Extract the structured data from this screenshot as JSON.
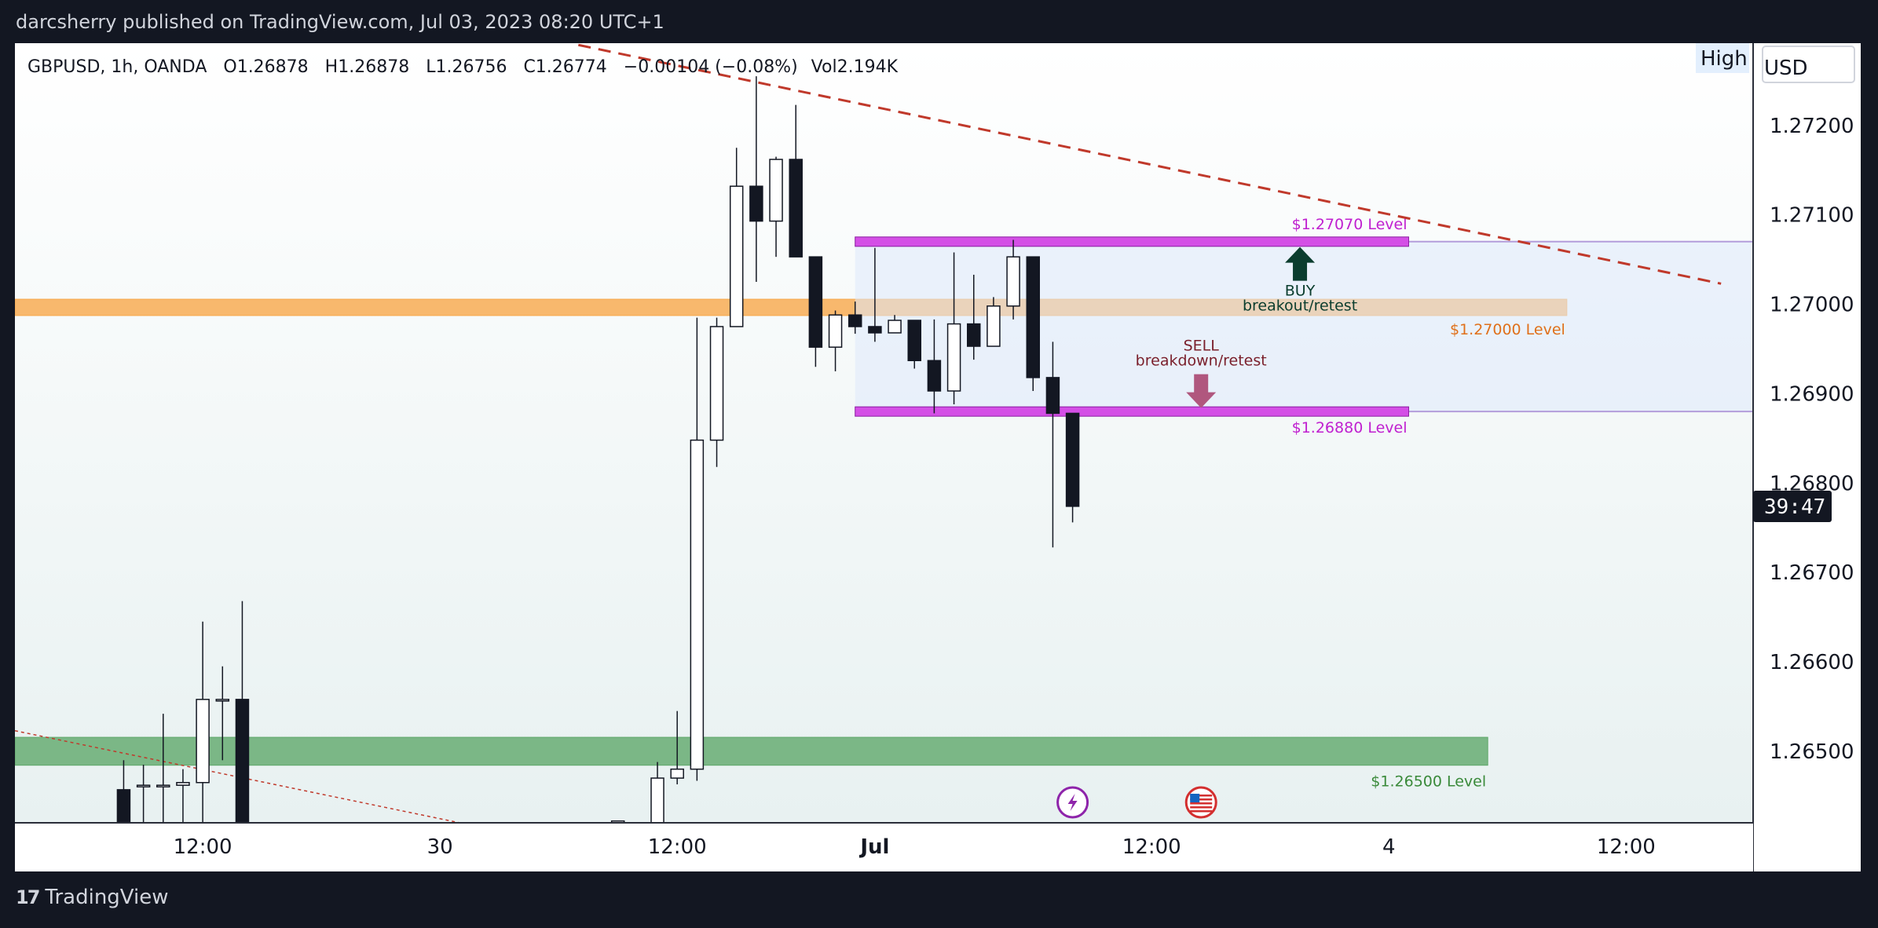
{
  "header": {
    "publish_line": "darcsherry published on TradingView.com, Jul 03, 2023 08:20 UTC+1"
  },
  "footer": {
    "brand": "TradingView",
    "logo_icon": "tradingview-logo-icon"
  },
  "colors": {
    "band_orange": "#f7a84a",
    "band_green": "#5fa86a",
    "magenta": "#d44fe6",
    "trend_red": "#c0392b",
    "buy_arrow": "#0b3d2e",
    "sell_arrow": "#b0577e",
    "label_orange": "#e0701a",
    "label_green": "#3a8a3a",
    "label_magenta": "#c020d0",
    "label_maroon": "#7a1f2b"
  },
  "chart_data": {
    "type": "candlestick",
    "symbol_line": {
      "symbol": "GBPUSD, 1h, OANDA",
      "open": "O1.26878",
      "high": "H1.26878",
      "low": "L1.26756",
      "close": "C1.26774",
      "change": "−0.00104 (−0.08%)",
      "volume": "Vol2.194K"
    },
    "currency": "USD",
    "toggle": "High",
    "countdown": "39:47",
    "y_range": [
      1.2642,
      1.2729
    ],
    "y_ticks": [
      "1.27200",
      "1.27100",
      "1.27000",
      "1.26900",
      "1.26800",
      "1.26700",
      "1.26600",
      "1.26500"
    ],
    "x_ticks": [
      {
        "label": "12:00",
        "bar": 9.5
      },
      {
        "label": "30",
        "bar": 21.5
      },
      {
        "label": "12:00",
        "bar": 33.5
      },
      {
        "label": "Jul",
        "bar": 43.5
      },
      {
        "label": "12:00",
        "bar": 57.5
      },
      {
        "label": "4",
        "bar": 69.5
      },
      {
        "label": "12:00",
        "bar": 81.5
      }
    ],
    "candles": [
      {
        "bar": 5.5,
        "o": 1.26457,
        "h": 1.2649,
        "l": 1.2642,
        "c": 1.2642
      },
      {
        "bar": 6.5,
        "o": 1.26462,
        "h": 1.26485,
        "l": 1.2642,
        "c": 1.26462
      },
      {
        "bar": 7.5,
        "o": 1.26462,
        "h": 1.26542,
        "l": 1.2642,
        "c": 1.26462
      },
      {
        "bar": 8.5,
        "o": 1.26462,
        "h": 1.2648,
        "l": 1.2642,
        "c": 1.26465
      },
      {
        "bar": 9.5,
        "o": 1.26465,
        "h": 1.26645,
        "l": 1.2642,
        "c": 1.26558
      },
      {
        "bar": 10.5,
        "o": 1.26558,
        "h": 1.26595,
        "l": 1.2649,
        "c": 1.26558
      },
      {
        "bar": 11.5,
        "o": 1.26558,
        "h": 1.26668,
        "l": 1.2642,
        "c": 1.2642
      },
      {
        "bar": 30.5,
        "o": 1.26422,
        "h": 1.26422,
        "l": 1.26418,
        "c": 1.26422
      },
      {
        "bar": 32.5,
        "o": 1.2642,
        "h": 1.26488,
        "l": 1.2642,
        "c": 1.2647
      },
      {
        "bar": 33.5,
        "o": 1.2647,
        "h": 1.26545,
        "l": 1.26463,
        "c": 1.2648
      },
      {
        "bar": 34.5,
        "o": 1.2648,
        "h": 1.26985,
        "l": 1.26467,
        "c": 1.26848
      },
      {
        "bar": 35.5,
        "o": 1.26848,
        "h": 1.26985,
        "l": 1.26818,
        "c": 1.26975
      },
      {
        "bar": 36.5,
        "o": 1.26975,
        "h": 1.27175,
        "l": 1.26975,
        "c": 1.27132
      },
      {
        "bar": 37.5,
        "o": 1.27132,
        "h": 1.27255,
        "l": 1.27025,
        "c": 1.27093
      },
      {
        "bar": 38.5,
        "o": 1.27093,
        "h": 1.27165,
        "l": 1.27053,
        "c": 1.27162
      },
      {
        "bar": 39.5,
        "o": 1.27162,
        "h": 1.27223,
        "l": 1.27053,
        "c": 1.27053
      },
      {
        "bar": 40.5,
        "o": 1.27053,
        "h": 1.27053,
        "l": 1.2693,
        "c": 1.26952
      },
      {
        "bar": 41.5,
        "o": 1.26952,
        "h": 1.26993,
        "l": 1.26925,
        "c": 1.26988
      },
      {
        "bar": 42.5,
        "o": 1.26988,
        "h": 1.27003,
        "l": 1.26967,
        "c": 1.26975
      },
      {
        "bar": 43.5,
        "o": 1.26975,
        "h": 1.27063,
        "l": 1.26958,
        "c": 1.26968
      },
      {
        "bar": 44.5,
        "o": 1.26968,
        "h": 1.26988,
        "l": 1.26968,
        "c": 1.26982
      },
      {
        "bar": 45.5,
        "o": 1.26982,
        "h": 1.26982,
        "l": 1.26928,
        "c": 1.26937
      },
      {
        "bar": 46.5,
        "o": 1.26937,
        "h": 1.26983,
        "l": 1.26878,
        "c": 1.26903
      },
      {
        "bar": 47.5,
        "o": 1.26903,
        "h": 1.27058,
        "l": 1.26888,
        "c": 1.26978
      },
      {
        "bar": 48.5,
        "o": 1.26978,
        "h": 1.27033,
        "l": 1.26938,
        "c": 1.26953
      },
      {
        "bar": 49.5,
        "o": 1.26953,
        "h": 1.27008,
        "l": 1.26953,
        "c": 1.26998
      },
      {
        "bar": 50.5,
        "o": 1.26998,
        "h": 1.27072,
        "l": 1.26983,
        "c": 1.27053
      },
      {
        "bar": 51.5,
        "o": 1.27053,
        "h": 1.27053,
        "l": 1.26903,
        "c": 1.26918
      },
      {
        "bar": 52.5,
        "o": 1.26918,
        "h": 1.26958,
        "l": 1.26728,
        "c": 1.26878
      },
      {
        "bar": 53.5,
        "o": 1.26878,
        "h": 1.26878,
        "l": 1.26756,
        "c": 1.26774
      }
    ],
    "zones": [
      {
        "kind": "band",
        "low": 1.2699,
        "high": 1.27003,
        "from_bar": 0,
        "to_bar": 78.5,
        "color_key": "band_orange",
        "label": "$1.27000 Level"
      },
      {
        "kind": "band",
        "low": 1.26487,
        "high": 1.26513,
        "from_bar": 0,
        "to_bar": 74.5,
        "color_key": "band_green",
        "label": "$1.26500 Level"
      },
      {
        "kind": "range",
        "low": 1.2688,
        "high": 1.2707,
        "from_bar": 42.5,
        "to_bar": 70.5
      },
      {
        "kind": "level",
        "price": 1.2707,
        "from_bar": 42.5,
        "to_bar": 70.5,
        "label": "$1.27070 Level"
      },
      {
        "kind": "level",
        "price": 1.2688,
        "from_bar": 42.5,
        "to_bar": 70.5,
        "label": "$1.26880 Level"
      }
    ],
    "trendlines": [
      {
        "from": {
          "bar": 28.5,
          "price": 1.2729
        },
        "to": {
          "bar": 86.3,
          "price": 1.27023
        },
        "style": "dashed"
      },
      {
        "from": {
          "bar": 0,
          "price": 1.26523
        },
        "to": {
          "bar": 22.5,
          "price": 1.2642
        },
        "style": "dotted"
      }
    ],
    "annotations": [
      {
        "text": "BUY",
        "sub": "breakout/retest",
        "direction": "up",
        "bar": 65.0,
        "price": 1.27064
      },
      {
        "text": "SELL",
        "sub": "breakdown/retest",
        "direction": "down",
        "bar": 60.0,
        "price": 1.26884
      }
    ],
    "event_icons": [
      {
        "name": "lightning-icon",
        "bar": 53.5
      },
      {
        "name": "us-flag-icon",
        "bar": 60.0
      }
    ]
  }
}
